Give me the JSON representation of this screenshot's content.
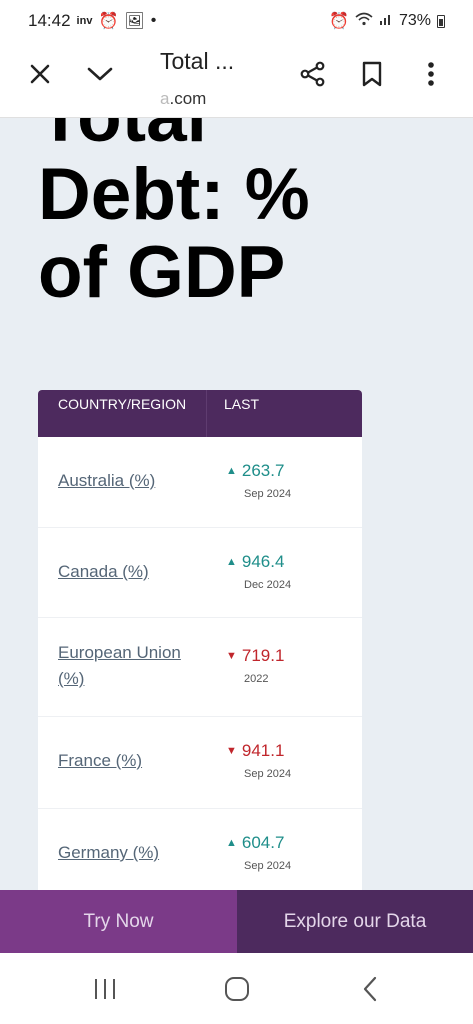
{
  "status_bar": {
    "time": "14:42",
    "left_icons": [
      "inv-icon",
      "alarm-icon",
      "image-icon",
      "dot-icon"
    ],
    "battery_percent": "73%",
    "right_icons": [
      "alarm-icon",
      "wifi-icon",
      "signal-icon",
      "battery-icon"
    ]
  },
  "toolbar": {
    "title": "Total ...",
    "url_faded": "a",
    "url_rest": ".com",
    "icons": [
      "close-icon",
      "chevron-down-icon",
      "share-icon",
      "bookmark-icon",
      "more-vert-icon"
    ]
  },
  "page": {
    "heading": "Total Debt: % of GDP"
  },
  "table": {
    "headers": {
      "country": "COUNTRY/REGION",
      "last": "LAST"
    },
    "rows": [
      {
        "name": "Australia (%)",
        "value": "263.7",
        "date": "Sep 2024",
        "trend": "up"
      },
      {
        "name": "Canada (%)",
        "value": "946.4",
        "date": "Dec 2024",
        "trend": "up"
      },
      {
        "name": "European Union (%)",
        "value": "719.1",
        "date": "2022",
        "trend": "down"
      },
      {
        "name": "France (%)",
        "value": "941.1",
        "date": "Sep 2024",
        "trend": "down"
      },
      {
        "name": "Germany (%)",
        "value": "604.7",
        "date": "Sep 2024",
        "trend": "up"
      }
    ]
  },
  "banner": {
    "try_now": "Try Now",
    "explore": "Explore our Data"
  },
  "colors": {
    "header_purple": "#4d2a5e",
    "try_purple": "#7b3a88",
    "up_teal": "#1f8e8a",
    "down_red": "#c0262c"
  }
}
